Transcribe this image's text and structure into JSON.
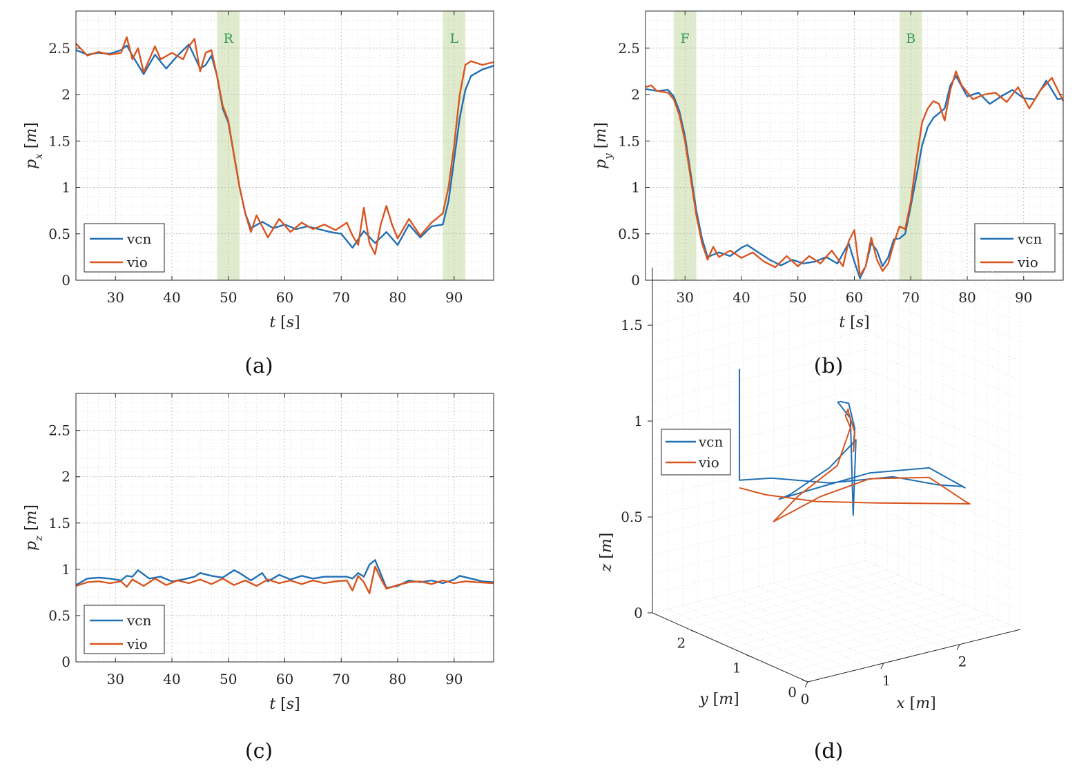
{
  "figure": {
    "captions": [
      "(a)",
      "(b)",
      "(c)",
      "(d)"
    ]
  },
  "colors": {
    "vcn": "#1f6fb5",
    "vio": "#d9541e",
    "band": "#dbe9c6",
    "band_text": "#2e9a53"
  },
  "chart_data": [
    {
      "id": "a",
      "type": "line",
      "xlabel": "t [s]",
      "ylabel": "p_x [m]",
      "xlim": [
        23,
        97
      ],
      "ylim": [
        0,
        2.9
      ],
      "xticks": [
        30,
        40,
        50,
        60,
        70,
        80,
        90
      ],
      "yticks": [
        0,
        0.5,
        1,
        1.5,
        2,
        2.5
      ],
      "xtick_labels": [
        "30",
        "40",
        "50",
        "60",
        "70",
        "80",
        "90"
      ],
      "ytick_labels": [
        "0",
        "0.5",
        "1",
        "1.5",
        "2",
        "2.5"
      ],
      "bands": [
        {
          "label": "R",
          "from": 48,
          "to": 52
        },
        {
          "label": "L",
          "from": 88,
          "to": 92
        }
      ],
      "legend": [
        "vcn",
        "vio"
      ],
      "legend_loc": "bottom-left",
      "series": [
        {
          "name": "vcn",
          "x": [
            23,
            25,
            27,
            29,
            31,
            32,
            33,
            35,
            37,
            39,
            41,
            43,
            45,
            46,
            47,
            48,
            49,
            50,
            51,
            52,
            53,
            54,
            56,
            58,
            60,
            62,
            64,
            66,
            68,
            70,
            72,
            73,
            74,
            76,
            78,
            80,
            82,
            84,
            86,
            88,
            89,
            90,
            91,
            92,
            93,
            95,
            97
          ],
          "y": [
            2.48,
            2.43,
            2.45,
            2.44,
            2.48,
            2.53,
            2.42,
            2.22,
            2.43,
            2.28,
            2.42,
            2.54,
            2.28,
            2.32,
            2.42,
            2.2,
            1.85,
            1.7,
            1.35,
            1.0,
            0.72,
            0.56,
            0.63,
            0.56,
            0.6,
            0.55,
            0.58,
            0.55,
            0.52,
            0.5,
            0.35,
            0.44,
            0.53,
            0.4,
            0.52,
            0.38,
            0.6,
            0.46,
            0.58,
            0.6,
            0.85,
            1.3,
            1.75,
            2.05,
            2.2,
            2.27,
            2.31
          ]
        },
        {
          "name": "vio",
          "x": [
            23,
            25,
            27,
            29,
            31,
            32,
            33,
            34,
            35,
            37,
            38,
            40,
            42,
            43,
            44,
            45,
            46,
            47,
            48,
            49,
            50,
            51,
            52,
            53,
            54,
            55,
            57,
            59,
            61,
            63,
            65,
            67,
            69,
            71,
            72,
            73,
            74,
            75,
            76,
            77,
            78,
            79,
            80,
            82,
            84,
            86,
            88,
            89,
            90,
            91,
            92,
            93,
            95,
            97
          ],
          "y": [
            2.55,
            2.42,
            2.46,
            2.43,
            2.45,
            2.62,
            2.38,
            2.5,
            2.24,
            2.52,
            2.38,
            2.45,
            2.38,
            2.52,
            2.6,
            2.25,
            2.45,
            2.48,
            2.2,
            1.88,
            1.72,
            1.35,
            1.0,
            0.72,
            0.52,
            0.7,
            0.46,
            0.66,
            0.52,
            0.62,
            0.55,
            0.6,
            0.54,
            0.62,
            0.48,
            0.38,
            0.78,
            0.4,
            0.28,
            0.6,
            0.8,
            0.6,
            0.45,
            0.66,
            0.48,
            0.62,
            0.72,
            1.0,
            1.45,
            2.0,
            2.32,
            2.36,
            2.32,
            2.35
          ]
        }
      ]
    },
    {
      "id": "b",
      "type": "line",
      "xlabel": "t [s]",
      "ylabel": "p_y [m]",
      "xlim": [
        23,
        97
      ],
      "ylim": [
        0,
        2.9
      ],
      "xticks": [
        30,
        40,
        50,
        60,
        70,
        80,
        90
      ],
      "yticks": [
        0,
        0.5,
        1,
        1.5,
        2,
        2.5
      ],
      "xtick_labels": [
        "30",
        "40",
        "50",
        "60",
        "70",
        "80",
        "90"
      ],
      "ytick_labels": [
        "0",
        "0.5",
        "1",
        "1.5",
        "2",
        "2.5"
      ],
      "bands": [
        {
          "label": "F",
          "from": 28,
          "to": 32
        },
        {
          "label": "B",
          "from": 68,
          "to": 72
        }
      ],
      "legend": [
        "vcn",
        "vio"
      ],
      "legend_loc": "bottom-right",
      "series": [
        {
          "name": "vcn",
          "x": [
            23,
            25,
            27,
            28,
            29,
            30,
            31,
            32,
            33,
            34,
            36,
            38,
            40,
            41,
            43,
            45,
            47,
            49,
            51,
            53,
            55,
            57,
            59,
            60,
            61,
            62,
            63,
            64,
            65,
            66,
            67,
            68,
            69,
            70,
            71,
            72,
            73,
            74,
            76,
            77,
            78,
            80,
            82,
            84,
            86,
            88,
            90,
            92,
            94,
            96,
            97
          ],
          "y": [
            2.06,
            2.04,
            2.05,
            1.98,
            1.82,
            1.55,
            1.15,
            0.75,
            0.45,
            0.25,
            0.3,
            0.26,
            0.35,
            0.38,
            0.3,
            0.22,
            0.16,
            0.22,
            0.18,
            0.2,
            0.25,
            0.18,
            0.4,
            0.2,
            0.02,
            0.15,
            0.4,
            0.32,
            0.15,
            0.25,
            0.44,
            0.45,
            0.5,
            0.8,
            1.12,
            1.45,
            1.65,
            1.75,
            1.85,
            2.1,
            2.2,
            1.98,
            2.02,
            1.9,
            1.98,
            2.05,
            1.96,
            1.95,
            2.15,
            1.95,
            1.96
          ]
        },
        {
          "name": "vio",
          "x": [
            23,
            24,
            25,
            27,
            28,
            29,
            30,
            31,
            32,
            33,
            34,
            35,
            36,
            38,
            40,
            42,
            44,
            46,
            48,
            50,
            52,
            54,
            56,
            58,
            59,
            60,
            61,
            62,
            63,
            64,
            65,
            66,
            67,
            68,
            69,
            70,
            71,
            72,
            73,
            74,
            75,
            76,
            77,
            78,
            79,
            81,
            83,
            85,
            87,
            89,
            91,
            93,
            95,
            97
          ],
          "y": [
            2.08,
            2.1,
            2.04,
            2.02,
            1.95,
            1.78,
            1.5,
            1.1,
            0.7,
            0.4,
            0.22,
            0.36,
            0.25,
            0.32,
            0.24,
            0.3,
            0.2,
            0.14,
            0.26,
            0.15,
            0.26,
            0.18,
            0.32,
            0.15,
            0.42,
            0.54,
            0.05,
            0.15,
            0.46,
            0.22,
            0.1,
            0.18,
            0.4,
            0.58,
            0.55,
            0.85,
            1.3,
            1.7,
            1.85,
            1.93,
            1.9,
            1.72,
            2.05,
            2.25,
            2.1,
            1.95,
            2.0,
            2.02,
            1.92,
            2.08,
            1.85,
            2.05,
            2.18,
            1.93
          ]
        }
      ]
    },
    {
      "id": "c",
      "type": "line",
      "xlabel": "t [s]",
      "ylabel": "p_z [m]",
      "xlim": [
        23,
        97
      ],
      "ylim": [
        0,
        2.9
      ],
      "xticks": [
        30,
        40,
        50,
        60,
        70,
        80,
        90
      ],
      "yticks": [
        0,
        0.5,
        1,
        1.5,
        2,
        2.5
      ],
      "xtick_labels": [
        "30",
        "40",
        "50",
        "60",
        "70",
        "80",
        "90"
      ],
      "ytick_labels": [
        "0",
        "0.5",
        "1",
        "1.5",
        "2",
        "2.5"
      ],
      "bands": [],
      "legend": [
        "vcn",
        "vio"
      ],
      "legend_loc": "bottom-left",
      "series": [
        {
          "name": "vcn",
          "x": [
            23,
            25,
            27,
            29,
            31,
            32,
            33,
            34,
            36,
            38,
            40,
            42,
            44,
            45,
            47,
            49,
            51,
            52,
            54,
            56,
            57,
            59,
            61,
            63,
            65,
            67,
            69,
            71,
            72,
            73,
            74,
            75,
            76,
            77,
            78,
            80,
            82,
            84,
            86,
            88,
            90,
            91,
            93,
            95,
            97
          ],
          "y": [
            0.83,
            0.9,
            0.91,
            0.9,
            0.88,
            0.93,
            0.92,
            0.99,
            0.9,
            0.92,
            0.87,
            0.89,
            0.92,
            0.96,
            0.93,
            0.91,
            0.99,
            0.96,
            0.88,
            0.96,
            0.87,
            0.94,
            0.89,
            0.93,
            0.9,
            0.92,
            0.92,
            0.92,
            0.9,
            0.96,
            0.92,
            1.05,
            1.1,
            0.95,
            0.8,
            0.82,
            0.88,
            0.86,
            0.88,
            0.85,
            0.89,
            0.93,
            0.9,
            0.87,
            0.86
          ]
        },
        {
          "name": "vio",
          "x": [
            23,
            25,
            27,
            29,
            31,
            32,
            33,
            35,
            37,
            39,
            41,
            43,
            45,
            47,
            49,
            51,
            53,
            55,
            57,
            59,
            61,
            63,
            65,
            67,
            69,
            71,
            72,
            73,
            74,
            75,
            76,
            77,
            78,
            80,
            82,
            84,
            86,
            88,
            90,
            92,
            94,
            97
          ],
          "y": [
            0.82,
            0.86,
            0.87,
            0.85,
            0.87,
            0.81,
            0.89,
            0.82,
            0.9,
            0.83,
            0.88,
            0.85,
            0.89,
            0.84,
            0.9,
            0.83,
            0.88,
            0.82,
            0.89,
            0.85,
            0.88,
            0.84,
            0.88,
            0.85,
            0.87,
            0.88,
            0.77,
            0.93,
            0.86,
            0.74,
            1.03,
            0.9,
            0.79,
            0.83,
            0.86,
            0.87,
            0.84,
            0.88,
            0.85,
            0.87,
            0.86,
            0.85
          ]
        }
      ]
    },
    {
      "id": "d",
      "type": "line3d",
      "xlabel": "x [m]",
      "ylabel": "y [m]",
      "zlabel": "z [m]",
      "xticks": [
        "0",
        "1",
        "2"
      ],
      "yticks": [
        "0",
        "1",
        "2"
      ],
      "zticks": [
        "0",
        "0.5",
        "1",
        "1.5"
      ],
      "xlim": [
        0,
        2.8
      ],
      "ylim": [
        0,
        2.8
      ],
      "zlim": [
        0,
        1.8
      ],
      "legend": [
        "vcn",
        "vio"
      ],
      "legend_loc": "top-left",
      "series": [
        {
          "name": "vcn",
          "x": [
            2.5,
            2.3,
            2.0,
            1.6,
            1.2,
            1.0,
            1.0,
            1.0,
            0.8,
            0.5,
            0.5,
            0.9,
            1.4,
            2.0,
            2.4,
            2.4,
            2.3,
            2.0,
            1.6,
            1.2,
            1.0,
            1.0
          ],
          "y": [
            2.6,
            2.3,
            2.0,
            1.6,
            1.1,
            0.6,
            0.55,
            0.5,
            0.7,
            1.0,
            1.2,
            1.0,
            0.8,
            0.55,
            0.45,
            0.5,
            0.8,
            1.2,
            1.8,
            2.3,
            2.6,
            2.6
          ],
          "z": [
            0.65,
            0.8,
            1.0,
            1.1,
            1.2,
            1.2,
            0.7,
            1.1,
            0.95,
            0.8,
            0.75,
            0.8,
            0.85,
            0.85,
            0.72,
            0.72,
            0.7,
            0.72,
            0.65,
            0.65,
            0.62,
            1.2
          ]
        },
        {
          "name": "vio",
          "x": [
            2.5,
            2.3,
            2.0,
            1.7,
            1.3,
            1.0,
            0.9,
            0.6,
            0.5,
            0.9,
            1.4,
            2.0,
            2.4,
            2.5,
            2.2,
            1.9,
            1.5,
            1.2,
            1.0
          ],
          "y": [
            2.6,
            2.3,
            2.0,
            1.6,
            1.1,
            0.6,
            0.7,
            1.0,
            1.3,
            1.0,
            0.8,
            0.55,
            0.45,
            0.5,
            0.9,
            1.3,
            1.9,
            2.4,
            2.6
          ],
          "z": [
            0.62,
            0.78,
            0.95,
            1.05,
            1.12,
            1.15,
            0.95,
            0.78,
            0.62,
            0.75,
            0.82,
            0.8,
            0.65,
            0.62,
            0.6,
            0.58,
            0.55,
            0.55,
            0.58
          ]
        }
      ]
    }
  ]
}
